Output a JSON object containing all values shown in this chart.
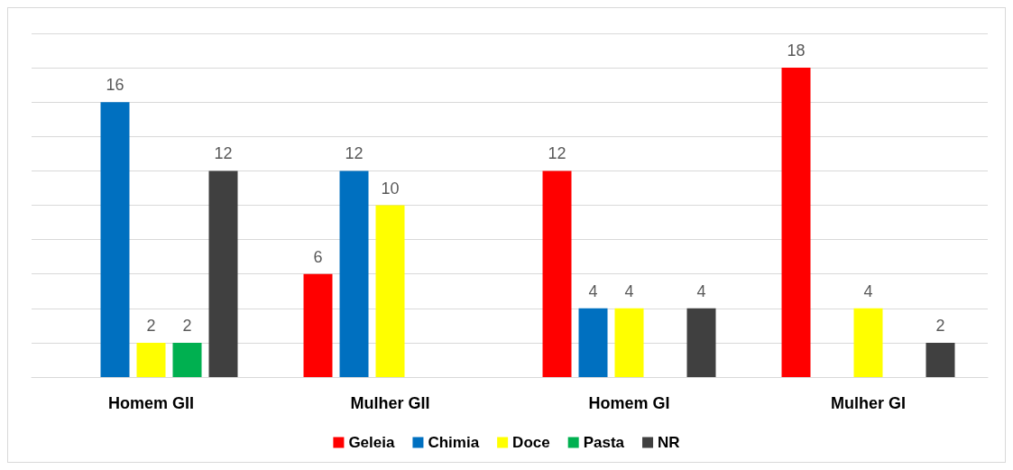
{
  "chart_data": {
    "type": "bar",
    "categories": [
      "Homem GII",
      "Mulher GII",
      "Homem GI",
      "Mulher GI"
    ],
    "series": [
      {
        "name": "Geleia",
        "color": "#ff0000",
        "values": [
          null,
          6,
          12,
          18
        ]
      },
      {
        "name": "Chimia",
        "color": "#0070c0",
        "values": [
          16,
          12,
          4,
          null
        ]
      },
      {
        "name": "Doce",
        "color": "#ffff00",
        "values": [
          2,
          10,
          4,
          4
        ]
      },
      {
        "name": "Pasta",
        "color": "#00b050",
        "values": [
          2,
          null,
          null,
          null
        ]
      },
      {
        "name": "NR",
        "color": "#404040",
        "values": [
          12,
          null,
          4,
          2
        ]
      }
    ],
    "ylim": [
      0,
      20
    ],
    "yticks": [
      0,
      2,
      4,
      6,
      8,
      10,
      12,
      14,
      16,
      18,
      20
    ],
    "grid": "y",
    "tick_labels": "x",
    "data_labels": true,
    "legend": "bottom"
  }
}
